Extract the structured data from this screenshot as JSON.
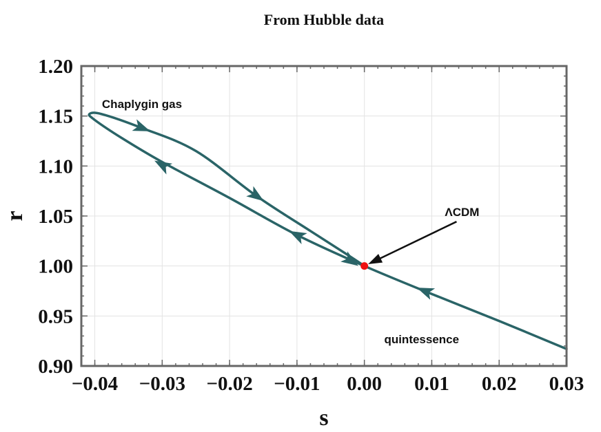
{
  "chart_data": {
    "type": "line",
    "title": "From Hubble data",
    "xlabel": "s",
    "ylabel": "r",
    "xlim": [
      -0.042,
      0.03
    ],
    "ylim": [
      0.9,
      1.2
    ],
    "xticks": [
      -0.04,
      -0.03,
      -0.02,
      -0.01,
      0.0,
      0.01,
      0.02,
      0.03
    ],
    "xtick_labels": [
      "−0.04",
      "−0.03",
      "−0.02",
      "−0.01",
      "0.00",
      "0.01",
      "0.02",
      "0.03"
    ],
    "yticks": [
      0.9,
      0.95,
      1.0,
      1.05,
      1.1,
      1.15,
      1.2
    ],
    "ytick_labels": [
      "0.90",
      "0.95",
      "1.00",
      "1.05",
      "1.10",
      "1.15",
      "1.20"
    ],
    "grid": true,
    "series": [
      {
        "color": "#2a6467",
        "points": [
          [
            0.03,
            0.917
          ],
          [
            0.02,
            0.945
          ],
          [
            0.01,
            0.972
          ],
          [
            0.0,
            1.0
          ],
          [
            -0.01,
            1.031
          ],
          [
            -0.02,
            1.068
          ],
          [
            -0.03,
            1.104
          ],
          [
            -0.036,
            1.128
          ],
          [
            -0.04,
            1.146
          ],
          [
            -0.0408,
            1.152
          ],
          [
            -0.039,
            1.152
          ],
          [
            -0.033,
            1.138
          ],
          [
            -0.025,
            1.115
          ],
          [
            -0.016,
            1.07
          ],
          [
            -0.008,
            1.035
          ],
          [
            -0.002,
            1.009
          ],
          [
            0.0,
            1.0
          ]
        ],
        "arrows": [
          {
            "s": 0.009,
            "r": 0.975,
            "direction": "toward -s"
          },
          {
            "s": -0.033,
            "r": 1.138,
            "direction": "toward +s"
          },
          {
            "s": -0.016,
            "r": 1.07,
            "direction": "toward +s"
          },
          {
            "s": -0.002,
            "r": 1.005,
            "direction": "toward +s"
          },
          {
            "s": -0.01,
            "r": 1.031,
            "direction": "toward -s"
          },
          {
            "s": -0.03,
            "r": 1.101,
            "direction": "toward -s"
          }
        ]
      }
    ],
    "points": [
      {
        "label": "ΛCDM",
        "s": 0.0,
        "r": 1.0,
        "color": "#ee1111"
      }
    ],
    "annotations": [
      {
        "text": "Chaplygin gas",
        "s": -0.033,
        "r": 1.162
      },
      {
        "text": "ΛCDM",
        "s": 0.0145,
        "r": 1.054
      },
      {
        "text": "quintessence",
        "s": 0.0085,
        "r": 0.927
      }
    ]
  }
}
